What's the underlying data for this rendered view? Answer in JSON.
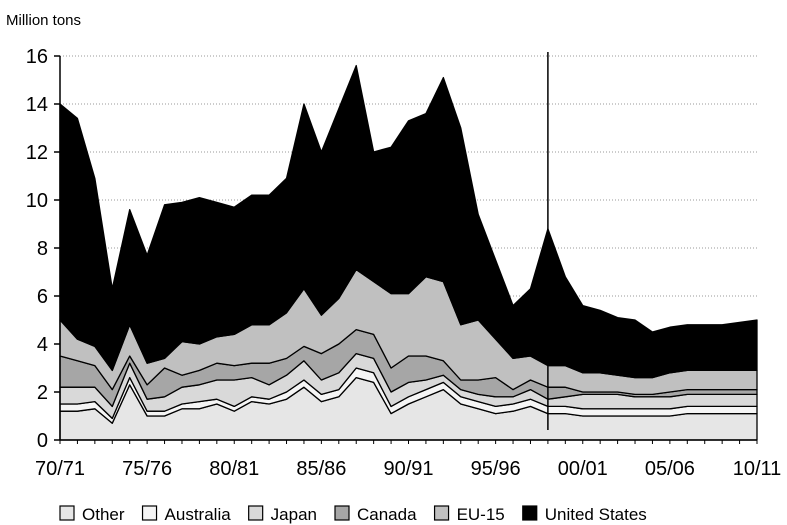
{
  "chart_data": {
    "type": "area",
    "stacked": true,
    "title": "",
    "ylabel": "Million tons",
    "xlabel": "",
    "ylim": [
      0,
      16
    ],
    "yticks": [
      "0",
      "2",
      "4",
      "6",
      "8",
      "10",
      "12",
      "14",
      "16"
    ],
    "xticks": [
      "70/71",
      "75/76",
      "80/81",
      "85/86",
      "90/91",
      "95/96",
      "00/01",
      "05/06",
      "10/11"
    ],
    "grid": "horizontal dotted",
    "legend_position": "bottom",
    "projection_marker_year": "98/99",
    "x": [
      "70/71",
      "71/72",
      "72/73",
      "73/74",
      "74/75",
      "75/76",
      "76/77",
      "77/78",
      "78/79",
      "79/80",
      "80/81",
      "81/82",
      "82/83",
      "83/84",
      "84/85",
      "85/86",
      "86/87",
      "87/88",
      "88/89",
      "89/90",
      "90/91",
      "91/92",
      "92/93",
      "93/94",
      "94/95",
      "95/96",
      "96/97",
      "97/98",
      "98/99",
      "99/00",
      "00/01",
      "01/02",
      "02/03",
      "03/04",
      "04/05",
      "05/06",
      "06/07",
      "07/08",
      "08/09",
      "09/10",
      "10/11"
    ],
    "series": [
      {
        "name": "Other",
        "color": "#e6e6e6",
        "values": [
          1.2,
          1.2,
          1.3,
          0.7,
          2.3,
          1.0,
          1.0,
          1.3,
          1.3,
          1.5,
          1.2,
          1.6,
          1.5,
          1.7,
          2.2,
          1.6,
          1.8,
          2.6,
          2.4,
          1.1,
          1.5,
          1.8,
          2.1,
          1.5,
          1.3,
          1.1,
          1.2,
          1.4,
          1.1,
          1.1,
          1.0,
          1.0,
          1.0,
          1.0,
          1.0,
          1.0,
          1.1,
          1.1,
          1.1,
          1.1,
          1.1
        ]
      },
      {
        "name": "Australia",
        "color": "#f5f5f5",
        "values": [
          0.3,
          0.3,
          0.3,
          0.2,
          0.3,
          0.2,
          0.2,
          0.2,
          0.3,
          0.2,
          0.2,
          0.2,
          0.2,
          0.3,
          0.3,
          0.3,
          0.3,
          0.4,
          0.4,
          0.3,
          0.3,
          0.3,
          0.3,
          0.3,
          0.3,
          0.3,
          0.3,
          0.3,
          0.3,
          0.3,
          0.3,
          0.3,
          0.3,
          0.3,
          0.3,
          0.3,
          0.3,
          0.3,
          0.3,
          0.3,
          0.3
        ]
      },
      {
        "name": "Japan",
        "color": "#d9d9d9",
        "values": [
          0.7,
          0.7,
          0.6,
          0.5,
          0.6,
          0.5,
          0.6,
          0.7,
          0.7,
          0.8,
          1.1,
          0.8,
          0.6,
          0.7,
          0.8,
          0.6,
          0.7,
          0.6,
          0.6,
          0.6,
          0.6,
          0.4,
          0.3,
          0.3,
          0.3,
          0.4,
          0.3,
          0.4,
          0.3,
          0.4,
          0.6,
          0.6,
          0.6,
          0.5,
          0.5,
          0.5,
          0.5,
          0.5,
          0.5,
          0.5,
          0.5
        ]
      },
      {
        "name": "Canada",
        "color": "#a6a6a6",
        "values": [
          1.3,
          1.1,
          0.9,
          0.7,
          0.3,
          0.6,
          1.2,
          0.5,
          0.6,
          0.7,
          0.6,
          0.6,
          0.9,
          0.7,
          0.6,
          1.1,
          1.2,
          1.0,
          1.0,
          1.0,
          1.1,
          1.0,
          0.6,
          0.4,
          0.6,
          0.8,
          0.3,
          0.4,
          0.5,
          0.4,
          0.1,
          0.1,
          0.1,
          0.1,
          0.1,
          0.2,
          0.2,
          0.2,
          0.2,
          0.2,
          0.2
        ]
      },
      {
        "name": "EU-15",
        "color": "#c0c0c0",
        "values": [
          1.5,
          0.9,
          0.8,
          0.8,
          1.3,
          0.9,
          0.4,
          1.4,
          1.1,
          1.1,
          1.3,
          1.6,
          1.6,
          1.9,
          2.4,
          1.6,
          1.9,
          2.5,
          2.2,
          3.1,
          2.6,
          3.3,
          3.3,
          2.3,
          2.5,
          1.6,
          1.3,
          1.0,
          0.9,
          0.9,
          0.8,
          0.8,
          0.7,
          0.7,
          0.7,
          0.8,
          0.8,
          0.8,
          0.8,
          0.8,
          0.8
        ]
      },
      {
        "name": "United States",
        "color": "#000000",
        "values": [
          9.0,
          9.2,
          7.0,
          3.4,
          4.8,
          4.5,
          6.4,
          5.8,
          6.1,
          5.6,
          5.3,
          5.4,
          5.4,
          5.6,
          7.7,
          6.8,
          7.9,
          8.5,
          5.4,
          6.1,
          7.2,
          6.8,
          8.5,
          8.2,
          4.4,
          3.3,
          2.2,
          2.8,
          5.7,
          3.7,
          2.8,
          2.6,
          2.4,
          2.4,
          1.9,
          1.9,
          1.9,
          1.9,
          1.9,
          2.0,
          2.1
        ]
      }
    ]
  },
  "legend": [
    {
      "label": "Other",
      "color": "#e6e6e6"
    },
    {
      "label": "Australia",
      "color": "#f5f5f5"
    },
    {
      "label": "Japan",
      "color": "#d9d9d9"
    },
    {
      "label": "Canada",
      "color": "#a6a6a6"
    },
    {
      "label": "EU-15",
      "color": "#c0c0c0"
    },
    {
      "label": "United States",
      "color": "#000000"
    }
  ]
}
